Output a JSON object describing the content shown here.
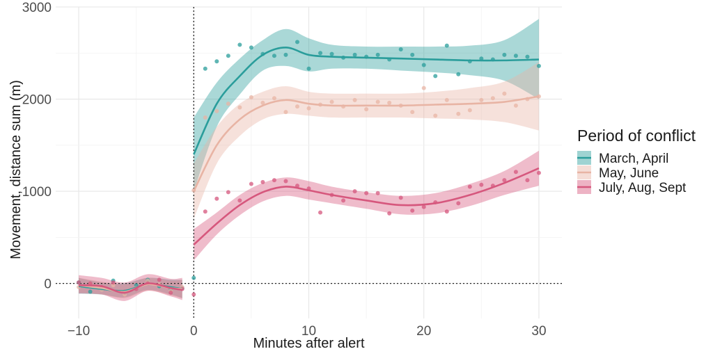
{
  "chart_data": {
    "type": "line",
    "title": "",
    "xlabel": "Minutes after alert",
    "ylabel": "Movement, distance sum (m)",
    "xlim": [
      -12,
      32
    ],
    "ylim": [
      -380,
      3000
    ],
    "xticks": [
      -10,
      0,
      10,
      20,
      30
    ],
    "xtick_labels": [
      "−10",
      "0",
      "10",
      "20",
      "30"
    ],
    "yticks": [
      0,
      1000,
      2000,
      3000
    ],
    "ytick_labels": [
      "0",
      "1000",
      "2000",
      "3000"
    ],
    "reference_lines": {
      "x": 0,
      "y": 0
    },
    "grid": true,
    "legend": {
      "title": "Period of conflict",
      "position": "right"
    },
    "series": [
      {
        "name": "March, April",
        "color": "#2a9d9b",
        "before": {
          "x": [
            -10,
            -8,
            -6,
            -4,
            -2,
            -1
          ],
          "y": [
            -30,
            -60,
            -80,
            -10,
            -40,
            -60
          ],
          "lower": [
            -110,
            -120,
            -150,
            -70,
            -120,
            -160
          ],
          "upper": [
            60,
            10,
            0,
            60,
            40,
            40
          ]
        },
        "after": {
          "x": [
            0,
            2,
            4,
            6,
            8,
            10,
            12,
            15,
            18,
            21,
            24,
            27,
            30
          ],
          "y": [
            1400,
            1950,
            2250,
            2480,
            2560,
            2480,
            2460,
            2450,
            2440,
            2430,
            2420,
            2420,
            2430
          ],
          "lower": [
            1000,
            1700,
            2050,
            2310,
            2360,
            2300,
            2330,
            2330,
            2310,
            2290,
            2260,
            2200,
            2000
          ],
          "upper": [
            1800,
            2180,
            2440,
            2640,
            2760,
            2660,
            2590,
            2570,
            2570,
            2570,
            2580,
            2640,
            2870
          ]
        },
        "points": [
          {
            "x": -10,
            "y": 10
          },
          {
            "x": -9,
            "y": -90
          },
          {
            "x": -8,
            "y": -60
          },
          {
            "x": -7,
            "y": 30
          },
          {
            "x": -6,
            "y": -100
          },
          {
            "x": -5,
            "y": -20
          },
          {
            "x": -4,
            "y": 40
          },
          {
            "x": -3,
            "y": -30
          },
          {
            "x": -2,
            "y": -60
          },
          {
            "x": -1,
            "y": -50
          },
          {
            "x": 0,
            "y": 60
          },
          {
            "x": 1,
            "y": 2330
          },
          {
            "x": 2,
            "y": 2410
          },
          {
            "x": 3,
            "y": 2470
          },
          {
            "x": 4,
            "y": 2590
          },
          {
            "x": 5,
            "y": 2560
          },
          {
            "x": 6,
            "y": 2490
          },
          {
            "x": 7,
            "y": 2470
          },
          {
            "x": 8,
            "y": 2480
          },
          {
            "x": 9,
            "y": 2620
          },
          {
            "x": 10,
            "y": 2330
          },
          {
            "x": 11,
            "y": 2500
          },
          {
            "x": 12,
            "y": 2490
          },
          {
            "x": 13,
            "y": 2450
          },
          {
            "x": 14,
            "y": 2480
          },
          {
            "x": 15,
            "y": 2460
          },
          {
            "x": 16,
            "y": 2480
          },
          {
            "x": 17,
            "y": 2430
          },
          {
            "x": 18,
            "y": 2540
          },
          {
            "x": 19,
            "y": 2480
          },
          {
            "x": 20,
            "y": 2370
          },
          {
            "x": 21,
            "y": 2250
          },
          {
            "x": 22,
            "y": 2580
          },
          {
            "x": 23,
            "y": 2270
          },
          {
            "x": 24,
            "y": 2410
          },
          {
            "x": 25,
            "y": 2440
          },
          {
            "x": 26,
            "y": 2430
          },
          {
            "x": 27,
            "y": 2480
          },
          {
            "x": 28,
            "y": 2470
          },
          {
            "x": 29,
            "y": 2460
          },
          {
            "x": 30,
            "y": 2360
          }
        ]
      },
      {
        "name": "May, June",
        "color": "#e8b4a4",
        "before": {
          "x": [
            -10,
            -8,
            -6,
            -4,
            -2,
            -1
          ],
          "y": [
            -20,
            -50,
            -90,
            -10,
            -50,
            -60
          ],
          "lower": [
            -100,
            -120,
            -160,
            -80,
            -130,
            -160
          ],
          "upper": [
            60,
            20,
            -10,
            60,
            30,
            40
          ]
        },
        "after": {
          "x": [
            0,
            2,
            4,
            6,
            8,
            10,
            12,
            15,
            18,
            21,
            24,
            27,
            30
          ],
          "y": [
            1000,
            1500,
            1780,
            1930,
            1990,
            1950,
            1930,
            1930,
            1930,
            1940,
            1950,
            1970,
            2030
          ],
          "lower": [
            700,
            1300,
            1600,
            1780,
            1840,
            1820,
            1800,
            1800,
            1800,
            1790,
            1780,
            1750,
            1660
          ],
          "upper": [
            1300,
            1700,
            1950,
            2080,
            2140,
            2080,
            2060,
            2060,
            2060,
            2080,
            2120,
            2190,
            2400
          ]
        },
        "points": [
          {
            "x": -10,
            "y": -40
          },
          {
            "x": -9,
            "y": -10
          },
          {
            "x": -8,
            "y": -70
          },
          {
            "x": -7,
            "y": -20
          },
          {
            "x": -6,
            "y": -120
          },
          {
            "x": -5,
            "y": -50
          },
          {
            "x": -4,
            "y": 30
          },
          {
            "x": -3,
            "y": -10
          },
          {
            "x": -2,
            "y": -80
          },
          {
            "x": -1,
            "y": -40
          },
          {
            "x": 0,
            "y": 1010
          },
          {
            "x": 1,
            "y": 1800
          },
          {
            "x": 2,
            "y": 1870
          },
          {
            "x": 3,
            "y": 1950
          },
          {
            "x": 4,
            "y": 1910
          },
          {
            "x": 5,
            "y": 2020
          },
          {
            "x": 6,
            "y": 1960
          },
          {
            "x": 7,
            "y": 2010
          },
          {
            "x": 8,
            "y": 1860
          },
          {
            "x": 9,
            "y": 1920
          },
          {
            "x": 10,
            "y": 1900
          },
          {
            "x": 11,
            "y": 1940
          },
          {
            "x": 12,
            "y": 1970
          },
          {
            "x": 13,
            "y": 1920
          },
          {
            "x": 14,
            "y": 1990
          },
          {
            "x": 15,
            "y": 1890
          },
          {
            "x": 16,
            "y": 1970
          },
          {
            "x": 17,
            "y": 1960
          },
          {
            "x": 18,
            "y": 1930
          },
          {
            "x": 19,
            "y": 1860
          },
          {
            "x": 20,
            "y": 2120
          },
          {
            "x": 21,
            "y": 1820
          },
          {
            "x": 22,
            "y": 1990
          },
          {
            "x": 23,
            "y": 1840
          },
          {
            "x": 24,
            "y": 1880
          },
          {
            "x": 25,
            "y": 1990
          },
          {
            "x": 26,
            "y": 2010
          },
          {
            "x": 27,
            "y": 2060
          },
          {
            "x": 28,
            "y": 1930
          },
          {
            "x": 29,
            "y": 2000
          },
          {
            "x": 30,
            "y": 2030
          }
        ]
      },
      {
        "name": "July, Aug, Sept",
        "color": "#d6577d",
        "before": {
          "x": [
            -10,
            -8,
            -6,
            -4,
            -2,
            -1
          ],
          "y": [
            -20,
            -30,
            -100,
            0,
            -50,
            -70
          ],
          "lower": [
            -110,
            -120,
            -190,
            -80,
            -140,
            -180
          ],
          "upper": [
            90,
            60,
            10,
            100,
            50,
            60
          ]
        },
        "after": {
          "x": [
            0,
            2,
            4,
            6,
            8,
            10,
            12,
            15,
            18,
            21,
            24,
            27,
            30
          ],
          "y": [
            420,
            650,
            850,
            990,
            1050,
            1010,
            960,
            900,
            850,
            870,
            960,
            1090,
            1250
          ],
          "lower": [
            250,
            530,
            740,
            890,
            950,
            910,
            870,
            810,
            750,
            760,
            840,
            960,
            1060
          ],
          "upper": [
            590,
            770,
            960,
            1090,
            1150,
            1110,
            1050,
            990,
            950,
            980,
            1080,
            1220,
            1440
          ]
        },
        "points": [
          {
            "x": -10,
            "y": 10
          },
          {
            "x": -9,
            "y": 0
          },
          {
            "x": -8,
            "y": -40
          },
          {
            "x": -7,
            "y": 10
          },
          {
            "x": -6,
            "y": -90
          },
          {
            "x": -5,
            "y": -60
          },
          {
            "x": -4,
            "y": 0
          },
          {
            "x": -3,
            "y": 40
          },
          {
            "x": -2,
            "y": -100
          },
          {
            "x": -1,
            "y": -60
          },
          {
            "x": 0,
            "y": -120
          },
          {
            "x": 1,
            "y": 780
          },
          {
            "x": 2,
            "y": 920
          },
          {
            "x": 3,
            "y": 990
          },
          {
            "x": 4,
            "y": 900
          },
          {
            "x": 5,
            "y": 1080
          },
          {
            "x": 6,
            "y": 1100
          },
          {
            "x": 7,
            "y": 1120
          },
          {
            "x": 8,
            "y": 1110
          },
          {
            "x": 9,
            "y": 1060
          },
          {
            "x": 10,
            "y": 1030
          },
          {
            "x": 11,
            "y": 770
          },
          {
            "x": 12,
            "y": 960
          },
          {
            "x": 13,
            "y": 900
          },
          {
            "x": 14,
            "y": 1000
          },
          {
            "x": 15,
            "y": 980
          },
          {
            "x": 16,
            "y": 980
          },
          {
            "x": 17,
            "y": 760
          },
          {
            "x": 18,
            "y": 930
          },
          {
            "x": 19,
            "y": 790
          },
          {
            "x": 20,
            "y": 830
          },
          {
            "x": 21,
            "y": 880
          },
          {
            "x": 22,
            "y": 780
          },
          {
            "x": 23,
            "y": 870
          },
          {
            "x": 24,
            "y": 1050
          },
          {
            "x": 25,
            "y": 1070
          },
          {
            "x": 26,
            "y": 1060
          },
          {
            "x": 27,
            "y": 1120
          },
          {
            "x": 28,
            "y": 1210
          },
          {
            "x": 29,
            "y": 1120
          },
          {
            "x": 30,
            "y": 1200
          }
        ]
      }
    ]
  }
}
